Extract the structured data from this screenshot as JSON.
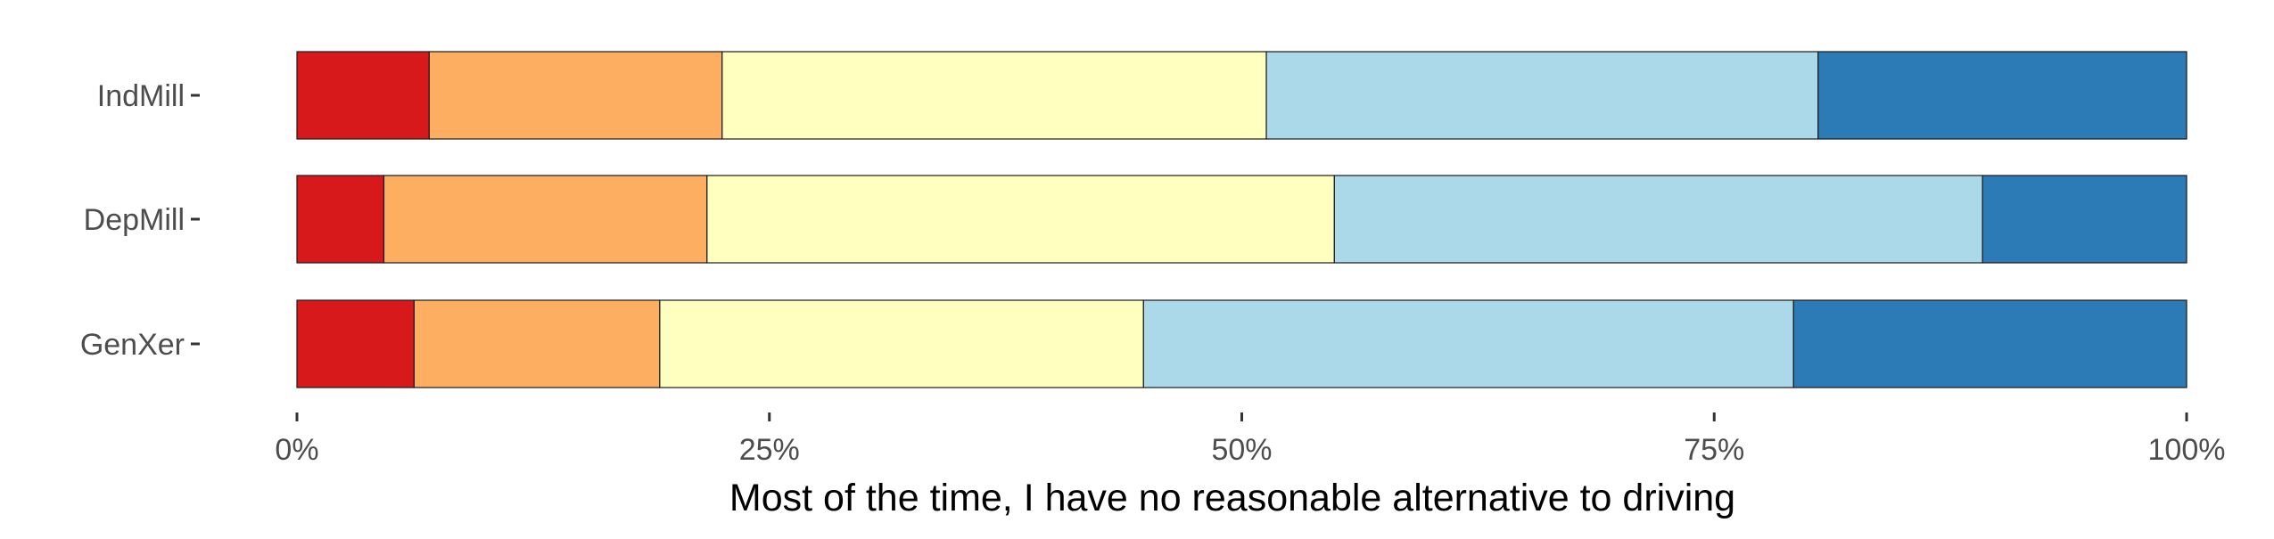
{
  "chart_data": {
    "type": "bar",
    "orientation": "horizontal",
    "stacked": true,
    "normalized": true,
    "categories": [
      "IndMill",
      "DepMill",
      "GenXer"
    ],
    "series": [
      {
        "color": "#d7191c",
        "values": [
          7.0,
          4.6,
          6.2
        ]
      },
      {
        "color": "#fdae61",
        "values": [
          15.5,
          17.1,
          13.0
        ]
      },
      {
        "color": "#ffffbf",
        "values": [
          28.8,
          33.2,
          25.6
        ]
      },
      {
        "color": "#abd9e9",
        "values": [
          29.2,
          34.3,
          34.4
        ]
      },
      {
        "color": "#2c7bb6",
        "values": [
          19.5,
          10.8,
          20.8
        ]
      }
    ],
    "xlabel": "Most of the time, I have no reasonable alternative to driving",
    "ylabel": "",
    "xlim": [
      0,
      100
    ],
    "xticks": [
      0,
      25,
      50,
      75,
      100
    ],
    "xtick_labels": [
      "0%",
      "25%",
      "50%",
      "75%",
      "100%"
    ],
    "grid": false,
    "legend": "none"
  }
}
